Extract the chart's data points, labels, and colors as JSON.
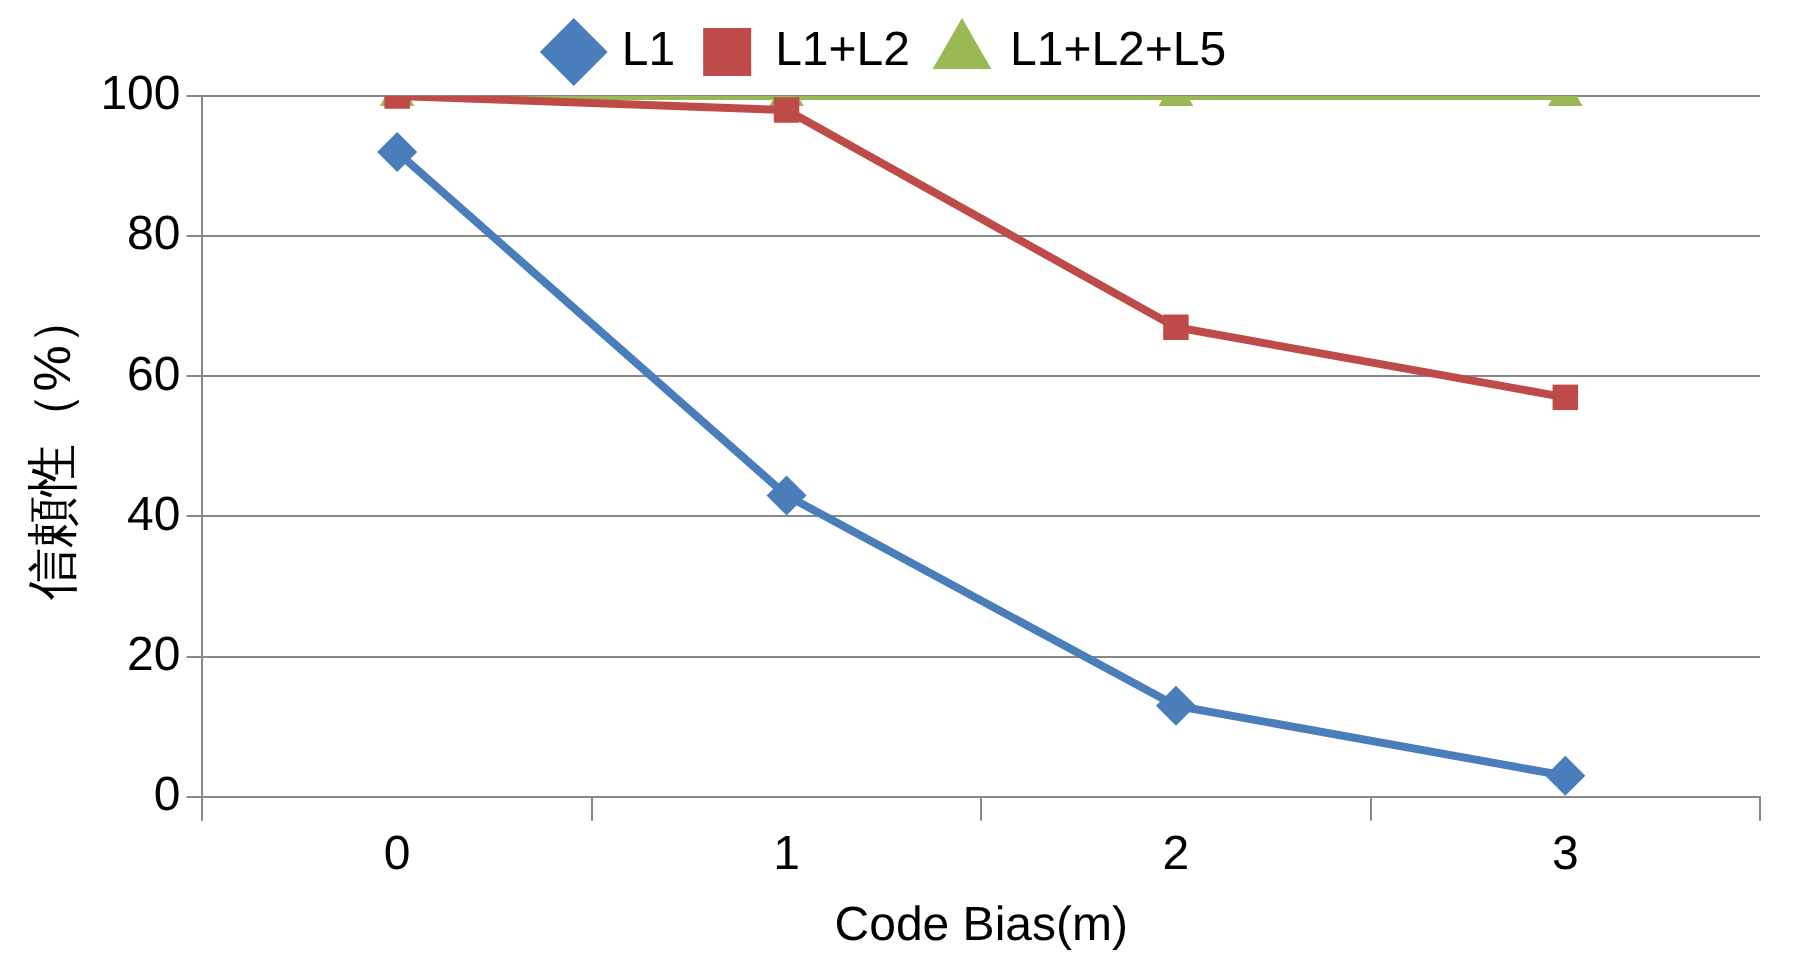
{
  "chart_data": {
    "type": "line",
    "xlabel": "Code Bias(m)",
    "ylabel": "信頼性（%）",
    "categories": [
      "0",
      "1",
      "2",
      "3"
    ],
    "series": [
      {
        "name": "L1",
        "color": "#4a7ebb",
        "marker": "diamond",
        "values": [
          92,
          43,
          13,
          3
        ]
      },
      {
        "name": "L1+L2",
        "color": "#be4b48",
        "marker": "square",
        "values": [
          100,
          98,
          67,
          57
        ]
      },
      {
        "name": "L1+L2+L5",
        "color": "#98b954",
        "marker": "triangle",
        "values": [
          100,
          100,
          100,
          100
        ]
      }
    ],
    "ylim": [
      0,
      100
    ],
    "yticks": [
      0,
      20,
      40,
      60,
      80,
      100
    ],
    "grid": "y",
    "legend": "top"
  }
}
